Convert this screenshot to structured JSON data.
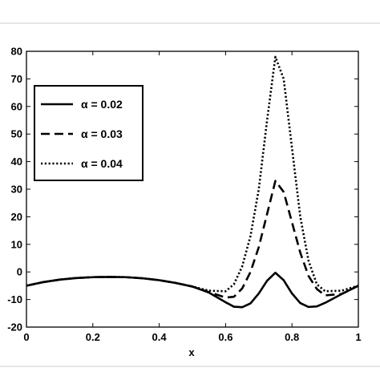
{
  "chart_data": {
    "type": "line",
    "title": "",
    "xlabel": "x",
    "ylabel": "",
    "xlim": [
      0,
      1
    ],
    "ylim": [
      -20,
      80
    ],
    "grid": false,
    "legend_position": "top-left",
    "x_ticks": [
      "0",
      "0.2",
      "0.4",
      "0.6",
      "0.8",
      "1"
    ],
    "y_ticks": [
      "-20",
      "-10",
      "0",
      "10",
      "20",
      "30",
      "40",
      "50",
      "60",
      "70",
      "80"
    ],
    "x": [
      0,
      0.05,
      0.1,
      0.15,
      0.2,
      0.25,
      0.3,
      0.35,
      0.4,
      0.45,
      0.5,
      0.55,
      0.6,
      0.625,
      0.65,
      0.675,
      0.7,
      0.725,
      0.75,
      0.775,
      0.8,
      0.825,
      0.85,
      0.875,
      0.9,
      0.95,
      1
    ],
    "series": [
      {
        "name": "α = 0.02",
        "style": "solid",
        "values": [
          -5,
          -3.7,
          -2.8,
          -2.2,
          -1.9,
          -1.8,
          -1.9,
          -2.3,
          -3.0,
          -4.0,
          -5.3,
          -7.5,
          -11,
          -12.6,
          -12.8,
          -11.4,
          -7.8,
          -3.2,
          -0.3,
          -3.0,
          -7.8,
          -11.3,
          -12.7,
          -12.5,
          -11.2,
          -8.0,
          -5
        ]
      },
      {
        "name": "α = 0.03",
        "style": "dashed",
        "values": [
          -5,
          -3.7,
          -2.8,
          -2.2,
          -1.9,
          -1.8,
          -1.9,
          -2.3,
          -3.0,
          -4.0,
          -5.3,
          -7.3,
          -9.3,
          -9.0,
          -6.0,
          0,
          9,
          21,
          33,
          29,
          18,
          7,
          -1.5,
          -6.2,
          -8.5,
          -8.0,
          -5
        ]
      },
      {
        "name": "α = 0.04",
        "style": "dotted",
        "values": [
          -5,
          -3.7,
          -2.8,
          -2.2,
          -1.9,
          -1.8,
          -1.9,
          -2.3,
          -3.0,
          -4.0,
          -5.3,
          -6.8,
          -7.0,
          -4.5,
          2,
          13,
          30,
          55,
          78,
          70,
          45,
          20,
          4,
          -4.5,
          -7.0,
          -6.8,
          -5
        ]
      }
    ]
  }
}
